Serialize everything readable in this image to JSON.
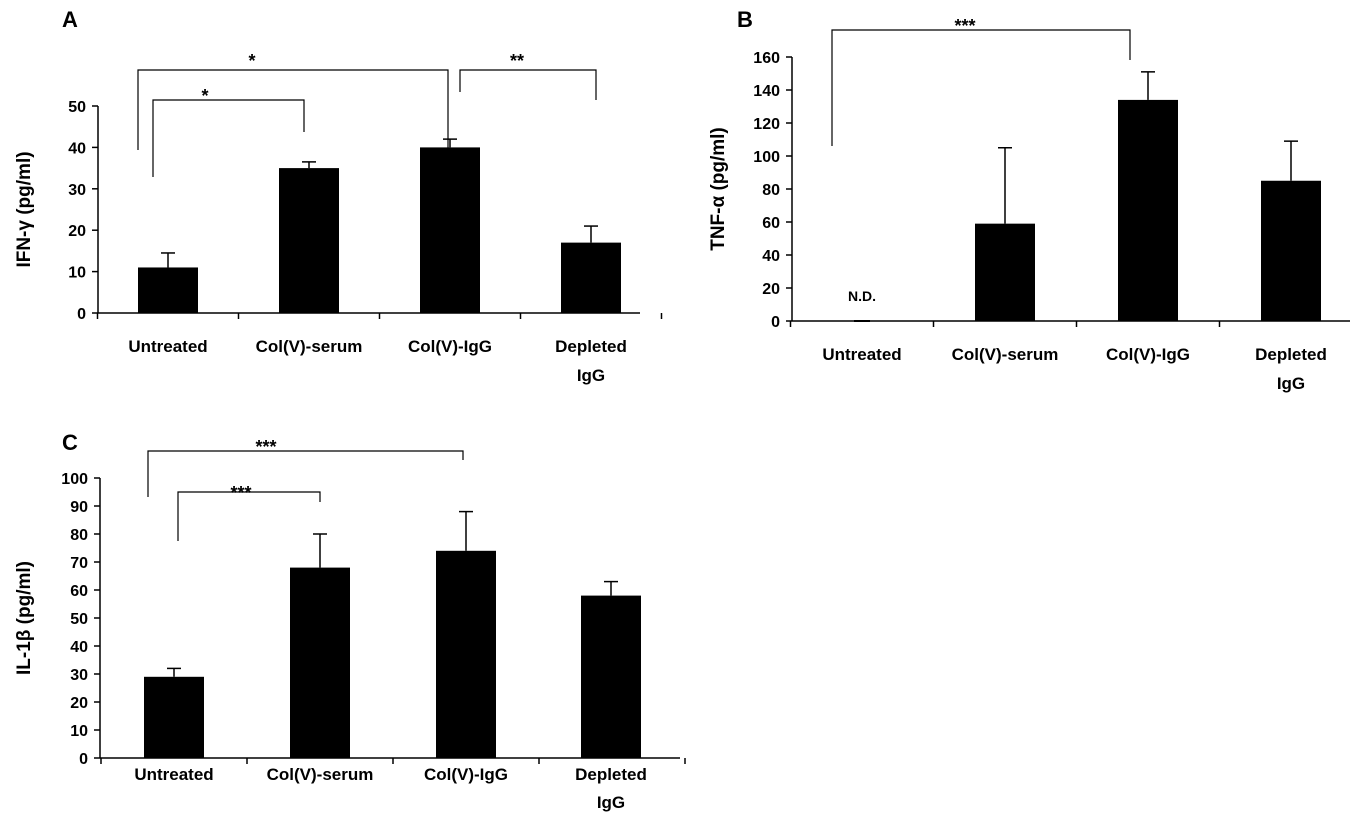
{
  "chart_data": [
    {
      "panel": "A",
      "type": "bar",
      "ylabel": "IFN-γ (pg/ml)",
      "categories": [
        [
          "Untreated"
        ],
        [
          "Col(V)-serum"
        ],
        [
          "Col(V)-IgG"
        ],
        [
          "Depleted",
          "IgG"
        ]
      ],
      "values": [
        11,
        35,
        40,
        17
      ],
      "errors": [
        3.5,
        1.5,
        2,
        4
      ],
      "ylim": [
        0,
        50
      ],
      "yticks": [
        0,
        10,
        20,
        30,
        40,
        50
      ],
      "annotations": [
        {
          "from": 0,
          "to": 1,
          "label": "*"
        },
        {
          "from": 0,
          "to": 2,
          "label": "*"
        },
        {
          "from": 2,
          "to": 3,
          "label": "**"
        }
      ]
    },
    {
      "panel": "B",
      "type": "bar",
      "ylabel": "TNF-α (pg/ml)",
      "categories": [
        [
          "Untreated"
        ],
        [
          "Col(V)-serum"
        ],
        [
          "Col(V)-IgG"
        ],
        [
          "Depleted",
          "IgG"
        ]
      ],
      "values": [
        0,
        59,
        134,
        85
      ],
      "errors": [
        0,
        46,
        17,
        24
      ],
      "ylim": [
        0,
        160
      ],
      "yticks": [
        0,
        20,
        40,
        60,
        80,
        100,
        120,
        140,
        160
      ],
      "value_labels": [
        {
          "index": 0,
          "label": "N.D."
        }
      ],
      "annotations": [
        {
          "from": 0,
          "to": 2,
          "label": "***"
        }
      ]
    },
    {
      "panel": "C",
      "type": "bar",
      "ylabel": "IL-1β (pg/ml)",
      "categories": [
        [
          "Untreated"
        ],
        [
          "Col(V)-serum"
        ],
        [
          "Col(V)-IgG"
        ],
        [
          "Depleted",
          "IgG"
        ]
      ],
      "values": [
        29,
        68,
        74,
        58
      ],
      "errors": [
        3,
        12,
        14,
        5
      ],
      "ylim": [
        0,
        100
      ],
      "yticks": [
        0,
        10,
        20,
        30,
        40,
        50,
        60,
        70,
        80,
        90,
        100
      ],
      "annotations": [
        {
          "from": 0,
          "to": 1,
          "label": "***"
        },
        {
          "from": 0,
          "to": 2,
          "label": "***"
        }
      ]
    }
  ]
}
